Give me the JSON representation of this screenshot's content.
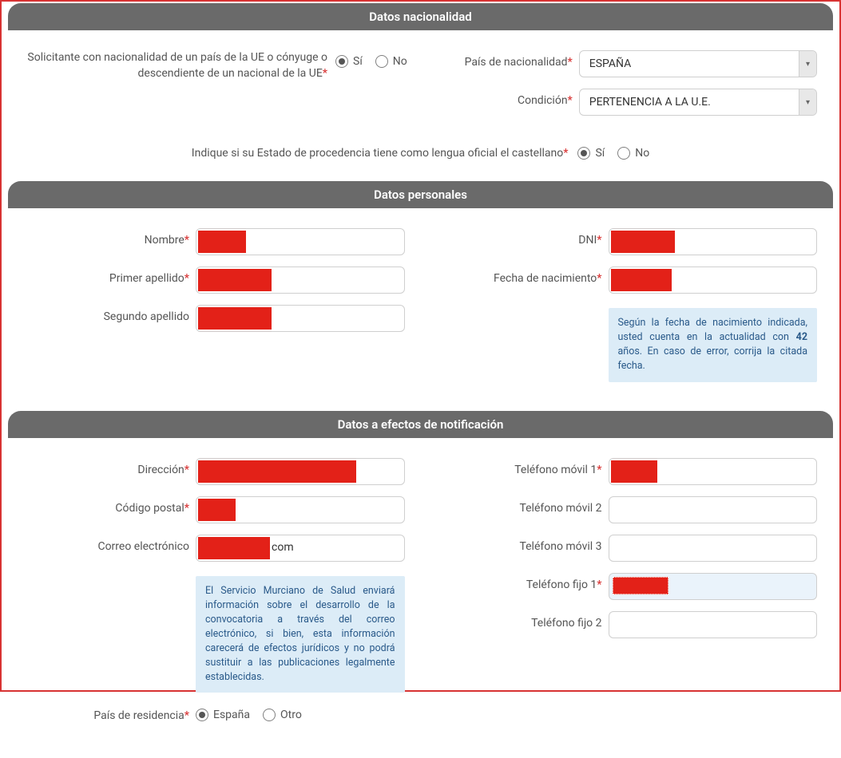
{
  "sections": {
    "nacionalidad": {
      "title": "Datos nacionalidad",
      "eu_question": "Solicitante con nacionalidad de un país de la UE o cónyuge o descendiente de un nacional de la UE",
      "eu_yes": "Sí",
      "eu_no": "No",
      "eu_selected": "yes",
      "pais_label": "País de nacionalidad",
      "pais_value": "ESPAÑA",
      "condicion_label": "Condición",
      "condicion_value": "PERTENENCIA A LA U.E.",
      "lengua_question": "Indique si su Estado de procedencia tiene como lengua oficial el castellano",
      "lengua_yes": "Sí",
      "lengua_no": "No",
      "lengua_selected": "yes"
    },
    "personales": {
      "title": "Datos personales",
      "nombre_label": "Nombre",
      "primer_apellido_label": "Primer apellido",
      "segundo_apellido_label": "Segundo apellido",
      "dni_label": "DNI",
      "fecha_nac_label": "Fecha de nacimiento",
      "age_info_pre": "Según la fecha de nacimiento indicada, usted cuenta en la actualidad con ",
      "age_value": "42",
      "age_info_post": " años. En caso de error, corrija la citada fecha."
    },
    "notificacion": {
      "title": "Datos a efectos de notificación",
      "direccion_label": "Dirección",
      "cp_label": "Código postal",
      "email_label": "Correo electrónico",
      "email_suffix": "com",
      "email_info": "El Servicio Murciano de Salud enviará información sobre el desarrollo de la convocatoria a través del correo electrónico, si bien, esta información carecerá de efectos jurídicos y no podrá sustituir a las publicaciones legalmente establecidas.",
      "pais_res_label": "País de residencia",
      "pais_res_es": "España",
      "pais_res_otro": "Otro",
      "pais_res_selected": "es",
      "movil1_label": "Teléfono móvil 1",
      "movil2_label": "Teléfono móvil 2",
      "movil3_label": "Teléfono móvil 3",
      "fijo1_label": "Teléfono fijo 1",
      "fijo2_label": "Teléfono fijo 2"
    }
  },
  "redactions": {
    "nombre_w": 60,
    "ap1_w": 92,
    "ap2_w": 92,
    "dni_w": 80,
    "fecha_w": 76,
    "dir_w": 198,
    "cp_w": 47,
    "email_w": 90,
    "movil1_w": 58,
    "fijo1_w": 70
  },
  "colors": {
    "header_bg": "#6a6a6a",
    "accent": "#d83333",
    "redact": "#e32118",
    "info_bg": "#dcecf7",
    "info_text": "#2a5a8a"
  }
}
